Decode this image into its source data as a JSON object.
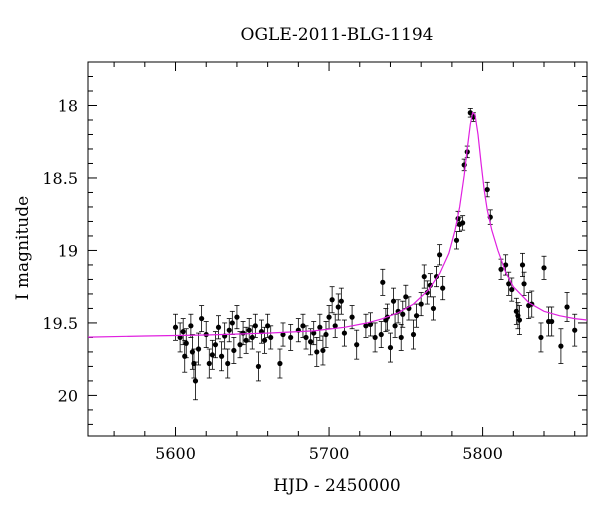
{
  "chart_data": {
    "type": "scatter",
    "title": "OGLE-2011-BLG-1194",
    "xlabel": "HJD - 2450000",
    "ylabel": "I magnitude",
    "xlim": [
      5543,
      5868
    ],
    "ylim": [
      20.28,
      17.7
    ],
    "y_inverted": true,
    "xticks": [
      5600,
      5700,
      5800
    ],
    "xtick_labels": [
      "5600",
      "5700",
      "5800"
    ],
    "yticks": [
      18,
      18.5,
      19,
      19.5,
      20
    ],
    "ytick_labels": [
      "18",
      "18.5",
      "19",
      "19.5",
      "20"
    ],
    "grid": false,
    "legend": "none",
    "colors": {
      "data": "#000000",
      "model": "#e020e0"
    },
    "observations": [
      [
        5600,
        19.53,
        0.09
      ],
      [
        5603,
        19.6,
        0.1
      ],
      [
        5605,
        19.56,
        0.09
      ],
      [
        5606,
        19.73,
        0.11
      ],
      [
        5607,
        19.64,
        0.1
      ],
      [
        5610,
        19.52,
        0.08
      ],
      [
        5611,
        19.7,
        0.12
      ],
      [
        5612,
        19.78,
        0.1
      ],
      [
        5613,
        19.9,
        0.13
      ],
      [
        5615,
        19.68,
        0.11
      ],
      [
        5617,
        19.47,
        0.09
      ],
      [
        5620,
        19.58,
        0.09
      ],
      [
        5622,
        19.78,
        0.1
      ],
      [
        5624,
        19.72,
        0.1
      ],
      [
        5626,
        19.65,
        0.09
      ],
      [
        5628,
        19.53,
        0.08
      ],
      [
        5630,
        19.73,
        0.1
      ],
      [
        5632,
        19.59,
        0.09
      ],
      [
        5634,
        19.78,
        0.1
      ],
      [
        5635,
        19.55,
        0.08
      ],
      [
        5637,
        19.5,
        0.08
      ],
      [
        5638,
        19.69,
        0.09
      ],
      [
        5640,
        19.46,
        0.08
      ],
      [
        5642,
        19.65,
        0.09
      ],
      [
        5644,
        19.57,
        0.08
      ],
      [
        5646,
        19.62,
        0.09
      ],
      [
        5648,
        19.55,
        0.08
      ],
      [
        5650,
        19.6,
        0.08
      ],
      [
        5652,
        19.52,
        0.08
      ],
      [
        5654,
        19.8,
        0.1
      ],
      [
        5656,
        19.56,
        0.08
      ],
      [
        5658,
        19.62,
        0.09
      ],
      [
        5660,
        19.52,
        0.08
      ],
      [
        5662,
        19.6,
        0.08
      ],
      [
        5668,
        19.78,
        0.1
      ],
      [
        5670,
        19.58,
        0.08
      ],
      [
        5675,
        19.6,
        0.09
      ],
      [
        5680,
        19.55,
        0.08
      ],
      [
        5683,
        19.52,
        0.08
      ],
      [
        5685,
        19.6,
        0.08
      ],
      [
        5688,
        19.63,
        0.09
      ],
      [
        5690,
        19.57,
        0.08
      ],
      [
        5692,
        19.7,
        0.1
      ],
      [
        5694,
        19.53,
        0.09
      ],
      [
        5696,
        19.69,
        0.1
      ],
      [
        5698,
        19.58,
        0.09
      ],
      [
        5700,
        19.46,
        0.08
      ],
      [
        5702,
        19.34,
        0.09
      ],
      [
        5704,
        19.52,
        0.08
      ],
      [
        5706,
        19.39,
        0.09
      ],
      [
        5708,
        19.35,
        0.09
      ],
      [
        5710,
        19.57,
        0.09
      ],
      [
        5715,
        19.46,
        0.08
      ],
      [
        5718,
        19.65,
        0.1
      ],
      [
        5724,
        19.52,
        0.08
      ],
      [
        5727,
        19.51,
        0.08
      ],
      [
        5730,
        19.6,
        0.1
      ],
      [
        5734,
        19.58,
        0.09
      ],
      [
        5735,
        19.22,
        0.09
      ],
      [
        5737,
        19.48,
        0.08
      ],
      [
        5738,
        19.46,
        0.09
      ],
      [
        5740,
        19.67,
        0.1
      ],
      [
        5742,
        19.35,
        0.09
      ],
      [
        5743,
        19.52,
        0.08
      ],
      [
        5745,
        19.42,
        0.08
      ],
      [
        5747,
        19.6,
        0.09
      ],
      [
        5748,
        19.44,
        0.09
      ],
      [
        5750,
        19.32,
        0.08
      ],
      [
        5752,
        19.4,
        0.08
      ],
      [
        5755,
        19.58,
        0.1
      ],
      [
        5757,
        19.45,
        0.08
      ],
      [
        5760,
        19.37,
        0.08
      ],
      [
        5762,
        19.18,
        0.08
      ],
      [
        5764,
        19.29,
        0.08
      ],
      [
        5766,
        19.24,
        0.08
      ],
      [
        5768,
        19.4,
        0.08
      ],
      [
        5770,
        19.18,
        0.07
      ],
      [
        5772,
        19.03,
        0.07
      ],
      [
        5774,
        19.26,
        0.08
      ],
      [
        5783,
        18.93,
        0.06
      ],
      [
        5784,
        18.78,
        0.05
      ],
      [
        5785,
        18.82,
        0.05
      ],
      [
        5787,
        18.81,
        0.05
      ],
      [
        5788,
        18.41,
        0.04
      ],
      [
        5790,
        18.32,
        0.04
      ],
      [
        5792,
        18.05,
        0.03
      ],
      [
        5794,
        18.08,
        0.03
      ],
      [
        5803,
        18.58,
        0.05
      ],
      [
        5805,
        18.77,
        0.05
      ],
      [
        5812,
        19.13,
        0.07
      ],
      [
        5815,
        19.1,
        0.07
      ],
      [
        5817,
        19.23,
        0.08
      ],
      [
        5819,
        19.27,
        0.08
      ],
      [
        5822,
        19.42,
        0.09
      ],
      [
        5823,
        19.45,
        0.09
      ],
      [
        5824,
        19.48,
        0.1
      ],
      [
        5826,
        19.1,
        0.08
      ],
      [
        5827,
        19.23,
        0.08
      ],
      [
        5830,
        19.38,
        0.09
      ],
      [
        5832,
        19.37,
        0.09
      ],
      [
        5838,
        19.6,
        0.1
      ],
      [
        5840,
        19.12,
        0.08
      ],
      [
        5843,
        19.49,
        0.1
      ],
      [
        5845,
        19.49,
        0.1
      ],
      [
        5851,
        19.66,
        0.12
      ],
      [
        5855,
        19.39,
        0.1
      ],
      [
        5860,
        19.55,
        0.11
      ]
    ],
    "model_curve": [
      [
        5543,
        19.598
      ],
      [
        5580,
        19.59
      ],
      [
        5620,
        19.583
      ],
      [
        5660,
        19.57
      ],
      [
        5690,
        19.555
      ],
      [
        5710,
        19.53
      ],
      [
        5725,
        19.5
      ],
      [
        5735,
        19.47
      ],
      [
        5745,
        19.43
      ],
      [
        5755,
        19.37
      ],
      [
        5765,
        19.27
      ],
      [
        5772,
        19.16
      ],
      [
        5778,
        19.02
      ],
      [
        5782,
        18.86
      ],
      [
        5785,
        18.7
      ],
      [
        5788,
        18.48
      ],
      [
        5790,
        18.3
      ],
      [
        5792,
        18.13
      ],
      [
        5793.5,
        18.05
      ],
      [
        5795,
        18.06
      ],
      [
        5797,
        18.2
      ],
      [
        5799,
        18.4
      ],
      [
        5801,
        18.58
      ],
      [
        5803,
        18.72
      ],
      [
        5806,
        18.86
      ],
      [
        5810,
        19.0
      ],
      [
        5815,
        19.15
      ],
      [
        5820,
        19.25
      ],
      [
        5830,
        19.36
      ],
      [
        5840,
        19.42
      ],
      [
        5850,
        19.45
      ],
      [
        5860,
        19.47
      ],
      [
        5868,
        19.48
      ]
    ]
  }
}
